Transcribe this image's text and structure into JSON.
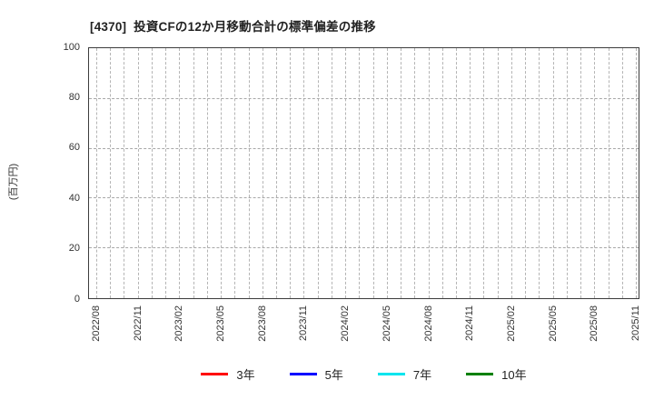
{
  "header": {
    "title": "[4370]  投資CFの12か月移動合計の標準偏差の推移"
  },
  "chart_data": {
    "type": "line",
    "title": "[4370]  投資CFの12か月移動合計の標準偏差の推移",
    "xlabel": "",
    "ylabel": "(百万円)",
    "ylim": [
      0,
      100
    ],
    "yticks": [
      0,
      20,
      40,
      60,
      80,
      100
    ],
    "x_months_count": 40,
    "x_tick_interval_months": 3,
    "x_tick_labels": [
      "2022/08",
      "2022/11",
      "2023/02",
      "2023/05",
      "2023/08",
      "2023/11",
      "2024/02",
      "2024/05",
      "2024/08",
      "2024/11",
      "2025/02",
      "2025/05",
      "2025/08",
      "2025/11"
    ],
    "grid": "dashed",
    "legend_position": "bottom",
    "series": [
      {
        "name": "3年",
        "color": "#ff0000",
        "values": []
      },
      {
        "name": "5年",
        "color": "#0000ff",
        "values": []
      },
      {
        "name": "7年",
        "color": "#00e5ee",
        "values": []
      },
      {
        "name": "10年",
        "color": "#008000",
        "values": []
      }
    ]
  }
}
